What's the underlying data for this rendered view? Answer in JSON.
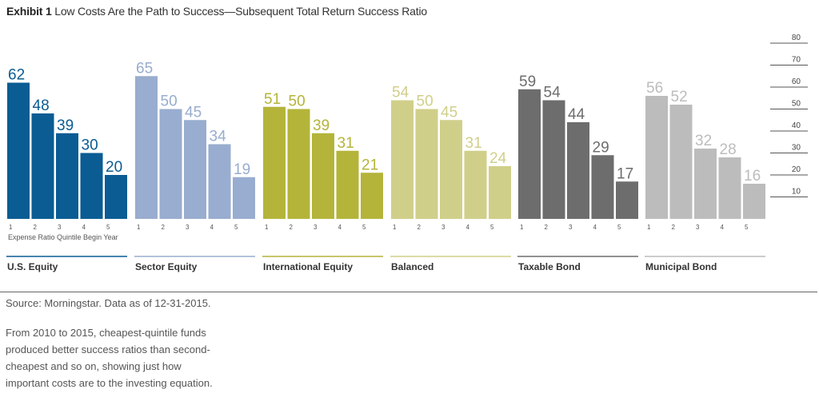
{
  "header": {
    "exhibit": "Exhibit 1",
    "title": "Low Costs Are the Path to Success—Subsequent Total Return Success Ratio"
  },
  "colors": {
    "us_equity": "#0a5c93",
    "sector_equity": "#98adcf",
    "international_equity": "#b4b43a",
    "balanced": "#d0cf8a",
    "taxable_bond": "#6d6d6d",
    "municipal_bond": "#bcbcbc"
  },
  "chart_data": {
    "type": "bar",
    "categories": [
      "1",
      "2",
      "3",
      "4",
      "5"
    ],
    "xlabel": "Expense Ratio Quintile Begin Year",
    "ylim": [
      0,
      80
    ],
    "yticks": [
      10,
      20,
      30,
      40,
      50,
      60,
      70,
      80
    ],
    "series": [
      {
        "name": "U.S. Equity",
        "values": [
          62,
          48,
          39,
          30,
          20
        ],
        "color": "#0a5c93"
      },
      {
        "name": "Sector Equity",
        "values": [
          65,
          50,
          45,
          34,
          19
        ],
        "color": "#98adcf"
      },
      {
        "name": "International Equity",
        "values": [
          51,
          50,
          39,
          31,
          21
        ],
        "color": "#b4b43a"
      },
      {
        "name": "Balanced",
        "values": [
          54,
          50,
          45,
          31,
          24
        ],
        "color": "#d0cf8a"
      },
      {
        "name": "Taxable Bond",
        "values": [
          59,
          54,
          44,
          29,
          17
        ],
        "color": "#6d6d6d"
      },
      {
        "name": "Municipal Bond",
        "values": [
          56,
          52,
          32,
          28,
          16
        ],
        "color": "#bcbcbc"
      }
    ]
  },
  "footer": {
    "source": "Source: Morningstar. Data as of 12-31-2015.",
    "note": "From 2010 to 2015, cheapest-quintile funds produced better success ratios than second-cheapest and so on, showing just how important costs are to the investing equation."
  }
}
